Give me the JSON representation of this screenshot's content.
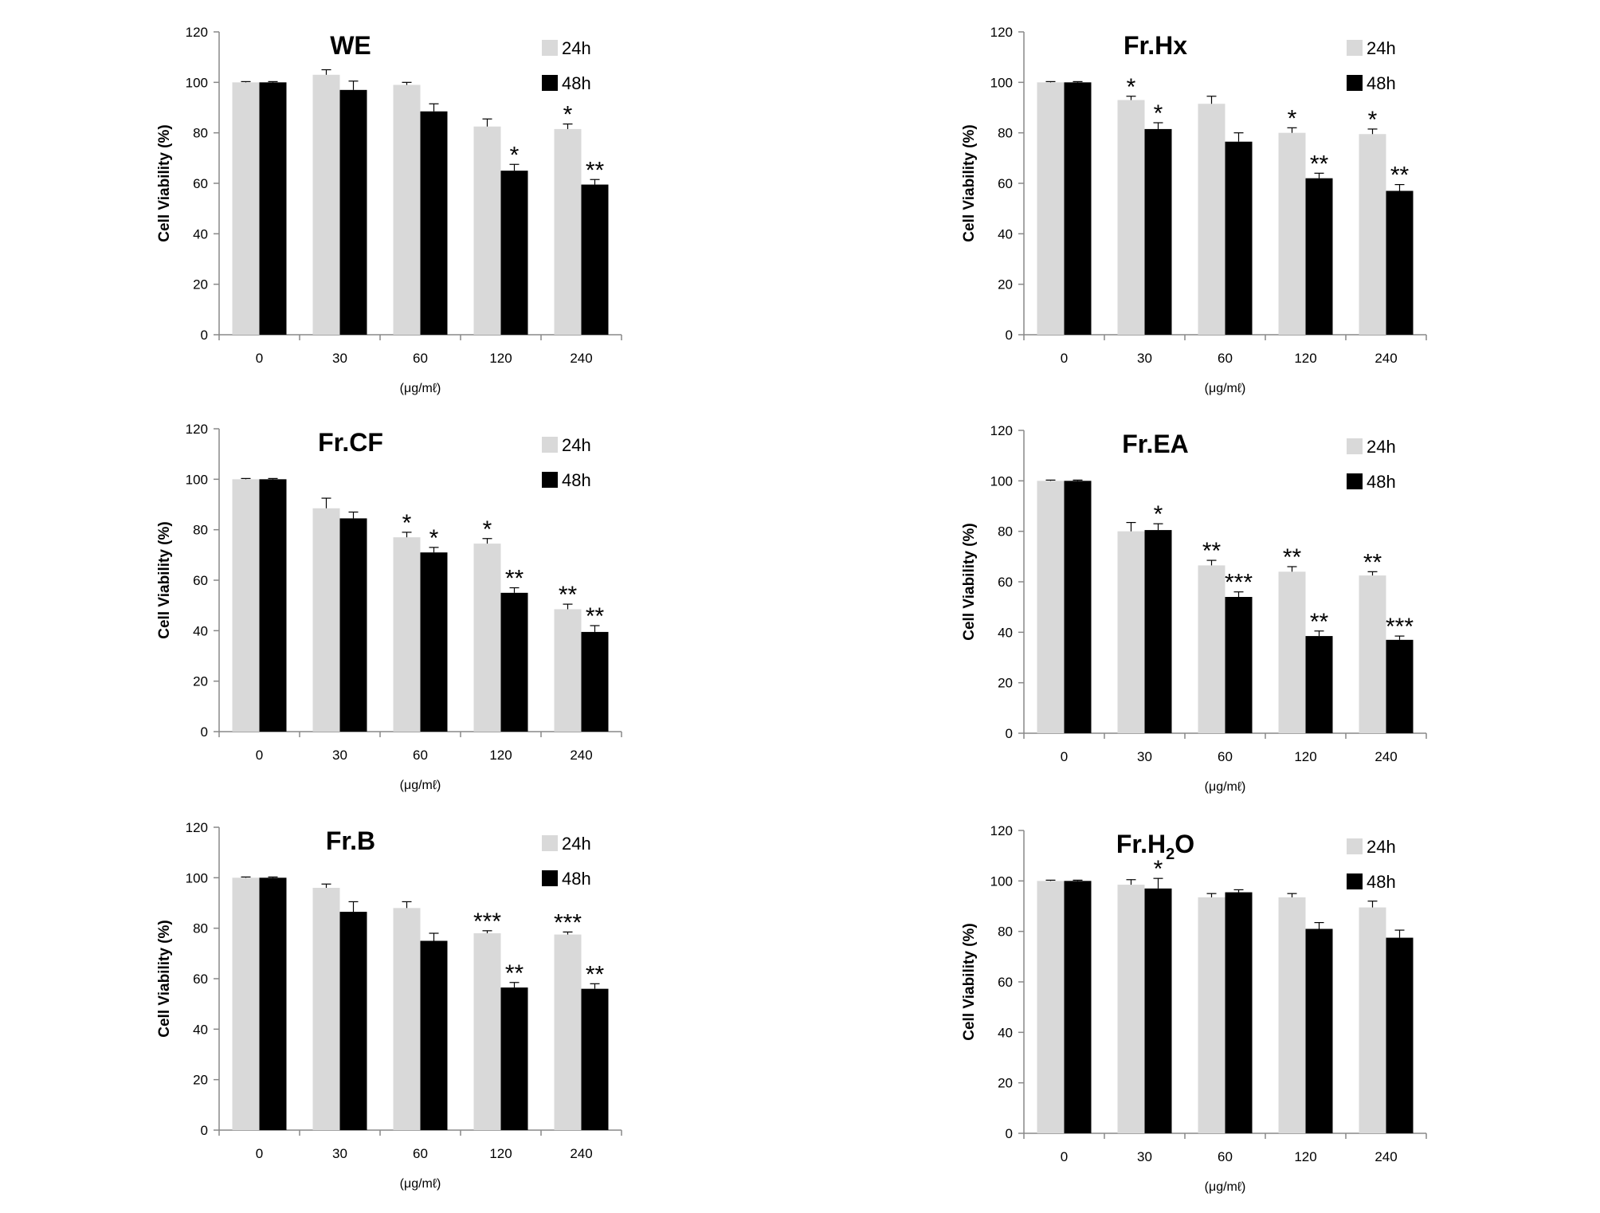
{
  "colors": {
    "h24": "#d9d9d9",
    "h48": "#000000",
    "axis": "#888888",
    "text": "#000000",
    "background": "#ffffff"
  },
  "chart_data": [
    {
      "type": "bar",
      "title": "WE",
      "categories": [
        "0",
        "30",
        "60",
        "120",
        "240"
      ],
      "xlabel": "(μg/mℓ)",
      "ylabel": "Cell Viability (%)",
      "ylim": [
        0,
        120
      ],
      "yticks": [
        "0",
        "20",
        "40",
        "60",
        "80",
        "100",
        "120"
      ],
      "grid": false,
      "legend": "top-right",
      "series": [
        {
          "name": "24h",
          "values": [
            100,
            103,
            99,
            82.5,
            81.5
          ],
          "errors": [
            0.3,
            2,
            1,
            3,
            2
          ],
          "sig": [
            "",
            "",
            "",
            "",
            "*"
          ]
        },
        {
          "name": "48h",
          "values": [
            100,
            97,
            88.5,
            65,
            59.5
          ],
          "errors": [
            0.3,
            3.5,
            3,
            2.5,
            2
          ],
          "sig": [
            "",
            "",
            "",
            "*",
            "**"
          ]
        }
      ]
    },
    {
      "type": "bar",
      "title": "Fr.Hx",
      "categories": [
        "0",
        "30",
        "60",
        "120",
        "240"
      ],
      "xlabel": "(μg/mℓ)",
      "ylabel": "Cell Viability (%)",
      "ylim": [
        0,
        120
      ],
      "yticks": [
        "0",
        "20",
        "40",
        "60",
        "80",
        "100",
        "120"
      ],
      "grid": false,
      "legend": "top-right",
      "series": [
        {
          "name": "24h",
          "values": [
            100,
            93,
            91.5,
            80,
            79.5
          ],
          "errors": [
            0.3,
            1.5,
            3,
            2,
            2
          ],
          "sig": [
            "",
            "*",
            "",
            "*",
            "*"
          ]
        },
        {
          "name": "48h",
          "values": [
            100,
            81.5,
            76.5,
            62,
            57
          ],
          "errors": [
            0.3,
            2.5,
            3.5,
            2,
            2.5
          ],
          "sig": [
            "",
            "*",
            "",
            "**",
            "**"
          ]
        }
      ]
    },
    {
      "type": "bar",
      "title": "Fr.CF",
      "categories": [
        "0",
        "30",
        "60",
        "120",
        "240"
      ],
      "xlabel": "(μg/mℓ)",
      "ylabel": "Cell Viability (%)",
      "ylim": [
        0,
        120
      ],
      "yticks": [
        "0",
        "20",
        "40",
        "60",
        "80",
        "100",
        "120"
      ],
      "grid": false,
      "legend": "top-right",
      "series": [
        {
          "name": "24h",
          "values": [
            100,
            88.5,
            77,
            74.5,
            48.5
          ],
          "errors": [
            0.3,
            4,
            2,
            2,
            2
          ],
          "sig": [
            "",
            "",
            "*",
            "*",
            "**"
          ]
        },
        {
          "name": "48h",
          "values": [
            100,
            84.5,
            71,
            55,
            39.5
          ],
          "errors": [
            0.3,
            2.5,
            2,
            2,
            2.5
          ],
          "sig": [
            "",
            "",
            "*",
            "**",
            "**"
          ]
        }
      ]
    },
    {
      "type": "bar",
      "title": "Fr.EA",
      "categories": [
        "0",
        "30",
        "60",
        "120",
        "240"
      ],
      "xlabel": "(μg/mℓ)",
      "ylabel": "Cell Viability (%)",
      "ylim": [
        0,
        120
      ],
      "yticks": [
        "0",
        "20",
        "40",
        "60",
        "80",
        "100",
        "120"
      ],
      "grid": false,
      "legend": "top-right",
      "series": [
        {
          "name": "24h",
          "values": [
            100,
            80,
            66.5,
            64,
            62.5
          ],
          "errors": [
            0.3,
            3.5,
            2,
            2,
            1.5
          ],
          "sig": [
            "",
            "",
            "**",
            "**",
            "**"
          ]
        },
        {
          "name": "48h",
          "values": [
            100,
            80.5,
            54,
            38.5,
            37
          ],
          "errors": [
            0.3,
            2.5,
            2,
            2,
            1.5
          ],
          "sig": [
            "",
            "*",
            "***",
            "**",
            "***"
          ]
        }
      ]
    },
    {
      "type": "bar",
      "title": "Fr.B",
      "categories": [
        "0",
        "30",
        "60",
        "120",
        "240"
      ],
      "xlabel": "(μg/mℓ)",
      "ylabel": "Cell Viability (%)",
      "ylim": [
        0,
        120
      ],
      "yticks": [
        "0",
        "20",
        "40",
        "60",
        "80",
        "100",
        "120"
      ],
      "grid": false,
      "legend": "top-right",
      "series": [
        {
          "name": "24h",
          "values": [
            100,
            96,
            88,
            78,
            77.5
          ],
          "errors": [
            0.3,
            1.5,
            2.5,
            1,
            1
          ],
          "sig": [
            "",
            "",
            "",
            "***",
            "***"
          ]
        },
        {
          "name": "48h",
          "values": [
            100,
            86.5,
            75,
            56.5,
            56
          ],
          "errors": [
            0.3,
            4,
            3,
            2,
            2
          ],
          "sig": [
            "",
            "",
            "",
            "**",
            "**"
          ]
        }
      ]
    },
    {
      "type": "bar",
      "title": "Fr.H",
      "title_sub": "2",
      "title_tail": "O",
      "categories": [
        "0",
        "30",
        "60",
        "120",
        "240"
      ],
      "xlabel": "(μg/mℓ)",
      "ylabel": "Cell Viability (%)",
      "ylim": [
        0,
        120
      ],
      "yticks": [
        "0",
        "20",
        "40",
        "60",
        "80",
        "100",
        "120"
      ],
      "grid": false,
      "legend": "top-right",
      "series": [
        {
          "name": "24h",
          "values": [
            100,
            98.5,
            93.5,
            93.5,
            89.5
          ],
          "errors": [
            0.3,
            2,
            1.5,
            1.5,
            2.5
          ],
          "sig": [
            "",
            "",
            "",
            "",
            ""
          ]
        },
        {
          "name": "48h",
          "values": [
            100,
            97,
            95.5,
            81,
            77.5
          ],
          "errors": [
            0.3,
            4,
            1,
            2.5,
            3
          ],
          "sig": [
            "",
            "*",
            "",
            "",
            ""
          ]
        }
      ]
    }
  ]
}
